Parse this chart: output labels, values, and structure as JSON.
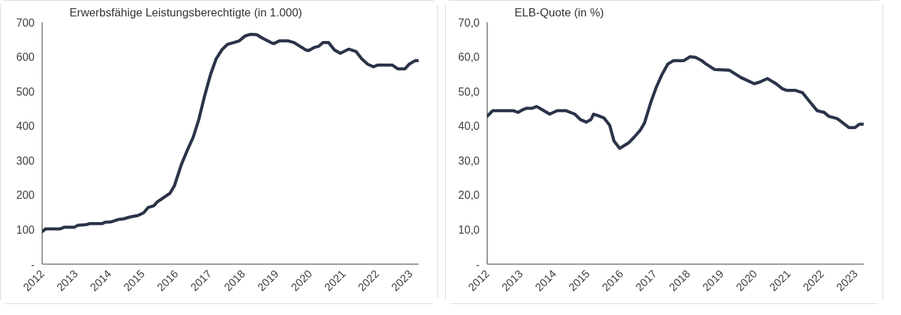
{
  "chart_data": [
    {
      "type": "line",
      "title": "Erwerbsfähige Leistungsberechtigte (in 1.000)",
      "x": [
        2012.0,
        2012.11,
        2012.54,
        2012.67,
        2012.97,
        2013.06,
        2013.32,
        2013.41,
        2013.79,
        2013.88,
        2014.05,
        2014.27,
        2014.44,
        2014.61,
        2014.87,
        2015.04,
        2015.17,
        2015.34,
        2015.43,
        2015.82,
        2015.95,
        2016.16,
        2016.34,
        2016.51,
        2016.68,
        2016.85,
        2017.03,
        2017.2,
        2017.37,
        2017.54,
        2017.72,
        2017.89,
        2018.06,
        2018.23,
        2018.41,
        2018.58,
        2018.84,
        2018.92,
        2019.09,
        2019.35,
        2019.53,
        2019.66,
        2019.87,
        2019.96,
        2020.13,
        2020.26,
        2020.39,
        2020.56,
        2020.73,
        2020.91,
        2021.16,
        2021.38,
        2021.55,
        2021.72,
        2021.9,
        2022.03,
        2022.46,
        2022.63,
        2022.84,
        2022.97,
        2023.15,
        2023.25
      ],
      "series": [
        {
          "color": "#2b3449",
          "values": [
            94,
            102,
            102,
            107,
            107,
            112,
            114,
            117,
            117,
            121,
            122,
            129,
            131,
            136,
            141,
            149,
            164,
            169,
            179,
            205,
            226,
            288,
            330,
            366,
            418,
            485,
            548,
            594,
            620,
            636,
            641,
            646,
            660,
            665,
            664,
            654,
            641,
            638,
            646,
            646,
            641,
            633,
            620,
            618,
            627,
            630,
            641,
            641,
            620,
            610,
            622,
            615,
            594,
            579,
            571,
            576,
            576,
            565,
            565,
            579,
            589,
            589
          ]
        }
      ],
      "xlim": [
        2012,
        2023.25
      ],
      "xticks": [
        2012,
        2013,
        2014,
        2015,
        2016,
        2017,
        2018,
        2019,
        2020,
        2021,
        2022,
        2023
      ],
      "ylim": [
        0,
        700
      ],
      "yticks": [
        {
          "value": 0,
          "label": "-"
        },
        100,
        200,
        300,
        400,
        500,
        600,
        700
      ],
      "grid": false
    },
    {
      "type": "line",
      "title": "ELB-Quote (in %)",
      "x": [
        2012.0,
        2012.17,
        2012.78,
        2012.92,
        2013.05,
        2013.18,
        2013.35,
        2013.48,
        2013.66,
        2013.87,
        2014.09,
        2014.35,
        2014.62,
        2014.79,
        2014.96,
        2015.1,
        2015.18,
        2015.31,
        2015.49,
        2015.66,
        2015.79,
        2015.96,
        2016.23,
        2016.4,
        2016.57,
        2016.7,
        2016.88,
        2017.05,
        2017.22,
        2017.4,
        2017.57,
        2017.88,
        2018.06,
        2018.23,
        2018.41,
        2018.54,
        2018.8,
        2019.24,
        2019.58,
        2019.98,
        2020.15,
        2020.37,
        2020.63,
        2020.81,
        2020.94,
        2021.2,
        2021.42,
        2021.64,
        2021.86,
        2022.07,
        2022.2,
        2022.46,
        2022.68,
        2022.81,
        2022.99,
        2023.12,
        2023.25
      ],
      "series": [
        {
          "color": "#2b3449",
          "values": [
            42.8,
            44.4,
            44.4,
            43.9,
            44.6,
            45.1,
            45.1,
            45.6,
            44.6,
            43.4,
            44.4,
            44.4,
            43.4,
            41.8,
            41.1,
            41.8,
            43.4,
            43.0,
            42.3,
            40.2,
            35.6,
            33.5,
            35.1,
            36.8,
            38.7,
            40.8,
            46.5,
            51.1,
            54.8,
            57.9,
            58.9,
            58.9,
            60.0,
            59.8,
            58.9,
            57.9,
            56.3,
            56.1,
            54.0,
            52.2,
            52.7,
            53.7,
            52.2,
            50.8,
            50.3,
            50.3,
            49.6,
            47.0,
            44.4,
            43.9,
            42.8,
            42.1,
            40.5,
            39.5,
            39.5,
            40.5,
            40.5
          ]
        }
      ],
      "xlim": [
        2012,
        2023.25
      ],
      "xticks": [
        2012,
        2013,
        2014,
        2015,
        2016,
        2017,
        2018,
        2019,
        2020,
        2021,
        2022,
        2023
      ],
      "ylim": [
        0,
        70
      ],
      "yticks": [
        {
          "value": 0,
          "label": "-"
        },
        {
          "value": 10,
          "label": "10,0"
        },
        {
          "value": 20,
          "label": "20,0"
        },
        {
          "value": 30,
          "label": "30,0"
        },
        {
          "value": 40,
          "label": "40,0"
        },
        {
          "value": 50,
          "label": "50,0"
        },
        {
          "value": 60,
          "label": "60,0"
        },
        {
          "value": 70,
          "label": "70,0"
        }
      ],
      "grid": false
    }
  ]
}
